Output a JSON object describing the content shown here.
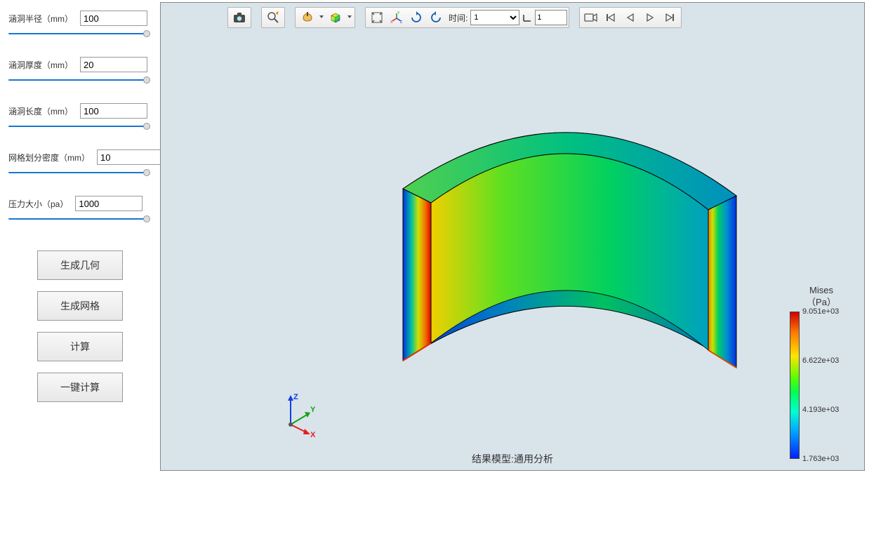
{
  "sidebar": {
    "params": [
      {
        "label": "涵洞半径（mm）",
        "value": "100"
      },
      {
        "label": "涵洞厚度（mm）",
        "value": "20"
      },
      {
        "label": "涵洞长度（mm）",
        "value": "100"
      },
      {
        "label": "网格划分密度（mm）",
        "value": "10"
      },
      {
        "label": "压力大小（pa）",
        "value": "1000"
      }
    ],
    "buttons": {
      "gen_geom": "生成几何",
      "gen_mesh": "生成网格",
      "compute": "计算",
      "one_click": "一键计算"
    }
  },
  "toolbar": {
    "time_label": "时间:",
    "time_select": "1",
    "frame_spin": "1"
  },
  "viewport": {
    "background": "#d9e3ea",
    "caption": "结果模型:通用分析",
    "triad": {
      "x_label": "X",
      "x_color": "#e02020",
      "y_label": "Y",
      "y_color": "#15a015",
      "z_label": "Z",
      "z_color": "#1040e0"
    }
  },
  "colorbar": {
    "title_line1": "Mises",
    "title_line2": "（Pa）",
    "gradient": [
      "#d10000",
      "#ff7a00",
      "#ffe400",
      "#59ff00",
      "#00ff54",
      "#00ffd1",
      "#00a2ff",
      "#0022ff"
    ],
    "ticks": [
      {
        "label": "9.051e+03",
        "pos": 0
      },
      {
        "label": "6.622e+03",
        "pos": 33.3
      },
      {
        "label": "4.193e+03",
        "pos": 66.6
      },
      {
        "label": "1.763e+03",
        "pos": 100
      }
    ]
  }
}
